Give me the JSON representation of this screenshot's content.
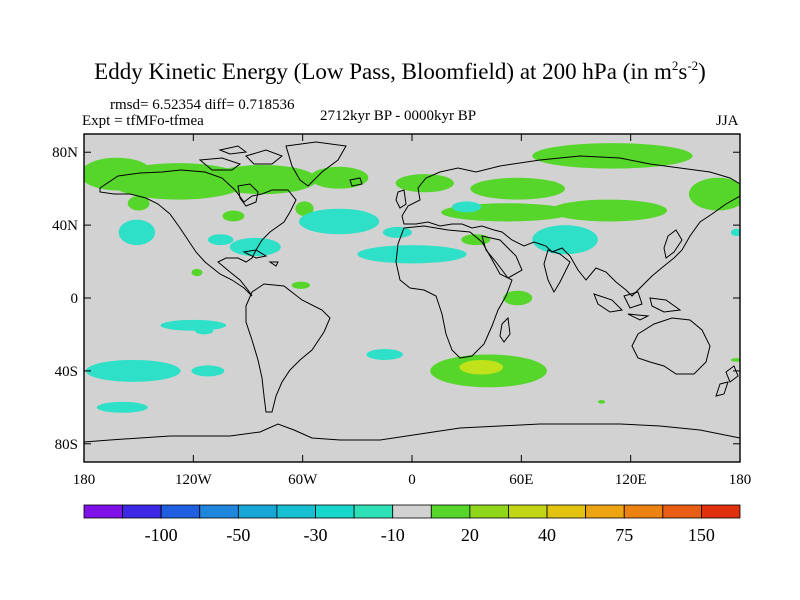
{
  "title": {
    "text": "Eddy Kinetic Energy (Low Pass, Bloomfield) at 200 hPa (in m",
    "sup1": "2",
    "mid": "s",
    "sup2": "-2",
    "end": ")"
  },
  "stats": {
    "rmsd": "rmsd= 6.52354 diff= 0.718536",
    "expt": "Expt = tfMFo-tfmea",
    "period": "2712kyr BP - 0000kyr BP",
    "season": "JJA"
  },
  "axes": {
    "lat_ticks": [
      {
        "lat": 80,
        "label": "80N"
      },
      {
        "lat": 40,
        "label": "40N"
      },
      {
        "lat": 0,
        "label": "0"
      },
      {
        "lat": -40,
        "label": "40S"
      },
      {
        "lat": -80,
        "label": "80S"
      }
    ],
    "lon_ticks": [
      {
        "lon": -180,
        "label": "180"
      },
      {
        "lon": -120,
        "label": "120W"
      },
      {
        "lon": -60,
        "label": "60W"
      },
      {
        "lon": 0,
        "label": "0"
      },
      {
        "lon": 60,
        "label": "60E"
      },
      {
        "lon": 120,
        "label": "120E"
      },
      {
        "lon": 180,
        "label": "180"
      }
    ],
    "lat_range": [
      -90,
      90
    ],
    "lon_range": [
      -180,
      180
    ]
  },
  "colorbar": {
    "colors": [
      "#7f10e8",
      "#3d28e6",
      "#1f5fe0",
      "#1e86dc",
      "#18a6d6",
      "#16c0d2",
      "#17d6cc",
      "#2ee0b6",
      "#d2d2d2",
      "#56d62a",
      "#8fd61a",
      "#c2d416",
      "#e2c410",
      "#eca412",
      "#ec8212",
      "#e85e14",
      "#e0300e"
    ],
    "labels": [
      {
        "after_box": 2,
        "text": "-100"
      },
      {
        "after_box": 4,
        "text": "-50"
      },
      {
        "after_box": 6,
        "text": "-30"
      },
      {
        "after_box": 8,
        "text": "-10"
      },
      {
        "after_box": 10,
        "text": "20"
      },
      {
        "after_box": 12,
        "text": "40"
      },
      {
        "after_box": 14,
        "text": "75"
      },
      {
        "after_box": 16,
        "text": "150"
      }
    ]
  },
  "colors": {
    "background": "#d2d2d2",
    "positive": "#56d62a",
    "strong_positive": "#bfe21a",
    "negative": "#2ee0c8"
  },
  "regions": [
    {
      "sign": "positive",
      "lon": -162,
      "lat": 68,
      "rlon": 20,
      "rlat": 9
    },
    {
      "sign": "positive",
      "lon": -128,
      "lat": 64,
      "rlon": 38,
      "rlat": 10
    },
    {
      "sign": "positive",
      "lon": -82,
      "lat": 65,
      "rlon": 30,
      "rlat": 8
    },
    {
      "sign": "positive",
      "lon": -40,
      "lat": 66,
      "rlon": 16,
      "rlat": 6
    },
    {
      "sign": "positive",
      "lon": 7,
      "lat": 63,
      "rlon": 16,
      "rlat": 5
    },
    {
      "sign": "positive",
      "lon": 58,
      "lat": 60,
      "rlon": 26,
      "rlat": 6
    },
    {
      "sign": "positive",
      "lon": 52,
      "lat": 47,
      "rlon": 36,
      "rlat": 5
    },
    {
      "sign": "positive",
      "lon": 110,
      "lat": 78,
      "rlon": 44,
      "rlat": 7
    },
    {
      "sign": "positive",
      "lon": 108,
      "lat": 48,
      "rlon": 32,
      "rlat": 6
    },
    {
      "sign": "positive",
      "lon": 168,
      "lat": 57,
      "rlon": 16,
      "rlat": 9
    },
    {
      "sign": "positive",
      "lon": -150,
      "lat": 52,
      "rlon": 6,
      "rlat": 4
    },
    {
      "sign": "positive",
      "lon": -98,
      "lat": 45,
      "rlon": 6,
      "rlat": 3
    },
    {
      "sign": "positive",
      "lon": 35,
      "lat": 32,
      "rlon": 8,
      "rlat": 3
    },
    {
      "sign": "positive",
      "lon": -59,
      "lat": 49,
      "rlon": 5,
      "rlat": 4
    },
    {
      "sign": "positive",
      "lon": -61,
      "lat": 7,
      "rlon": 5,
      "rlat": 2
    },
    {
      "sign": "positive",
      "lon": -118,
      "lat": 14,
      "rlon": 3,
      "rlat": 2
    },
    {
      "sign": "positive",
      "lon": 58,
      "lat": 0,
      "rlon": 8,
      "rlat": 4
    },
    {
      "sign": "positive",
      "lon": 42,
      "lat": -40,
      "rlon": 32,
      "rlat": 9
    },
    {
      "sign": "positive",
      "lon": 104,
      "lat": -57,
      "rlon": 2,
      "rlat": 1
    },
    {
      "sign": "positive",
      "lon": 178,
      "lat": -34,
      "rlon": 3,
      "rlat": 1
    },
    {
      "sign": "strong_positive",
      "lon": 38,
      "lat": -38,
      "rlon": 12,
      "rlat": 4
    },
    {
      "sign": "negative",
      "lon": -151,
      "lat": 36,
      "rlon": 10,
      "rlat": 7
    },
    {
      "sign": "negative",
      "lon": -105,
      "lat": 32,
      "rlon": 7,
      "rlat": 3
    },
    {
      "sign": "negative",
      "lon": -86,
      "lat": 28,
      "rlon": 14,
      "rlat": 5
    },
    {
      "sign": "negative",
      "lon": -40,
      "lat": 42,
      "rlon": 22,
      "rlat": 7
    },
    {
      "sign": "negative",
      "lon": -8,
      "lat": 36,
      "rlon": 8,
      "rlat": 3
    },
    {
      "sign": "negative",
      "lon": 30,
      "lat": 50,
      "rlon": 8,
      "rlat": 3
    },
    {
      "sign": "negative",
      "lon": 0,
      "lat": 24,
      "rlon": 30,
      "rlat": 5
    },
    {
      "sign": "negative",
      "lon": 84,
      "lat": 32,
      "rlon": 18,
      "rlat": 8
    },
    {
      "sign": "negative",
      "lon": 178,
      "lat": 36,
      "rlon": 3,
      "rlat": 2
    },
    {
      "sign": "negative",
      "lon": -120,
      "lat": -15,
      "rlon": 18,
      "rlat": 3
    },
    {
      "sign": "negative",
      "lon": -153,
      "lat": -40,
      "rlon": 26,
      "rlat": 6
    },
    {
      "sign": "negative",
      "lon": -112,
      "lat": -40,
      "rlon": 9,
      "rlat": 3
    },
    {
      "sign": "negative",
      "lon": -114,
      "lat": -18,
      "rlon": 5,
      "rlat": 2
    },
    {
      "sign": "negative",
      "lon": -15,
      "lat": -31,
      "rlon": 10,
      "rlat": 3
    },
    {
      "sign": "negative",
      "lon": -159,
      "lat": -60,
      "rlon": 14,
      "rlat": 3
    }
  ]
}
